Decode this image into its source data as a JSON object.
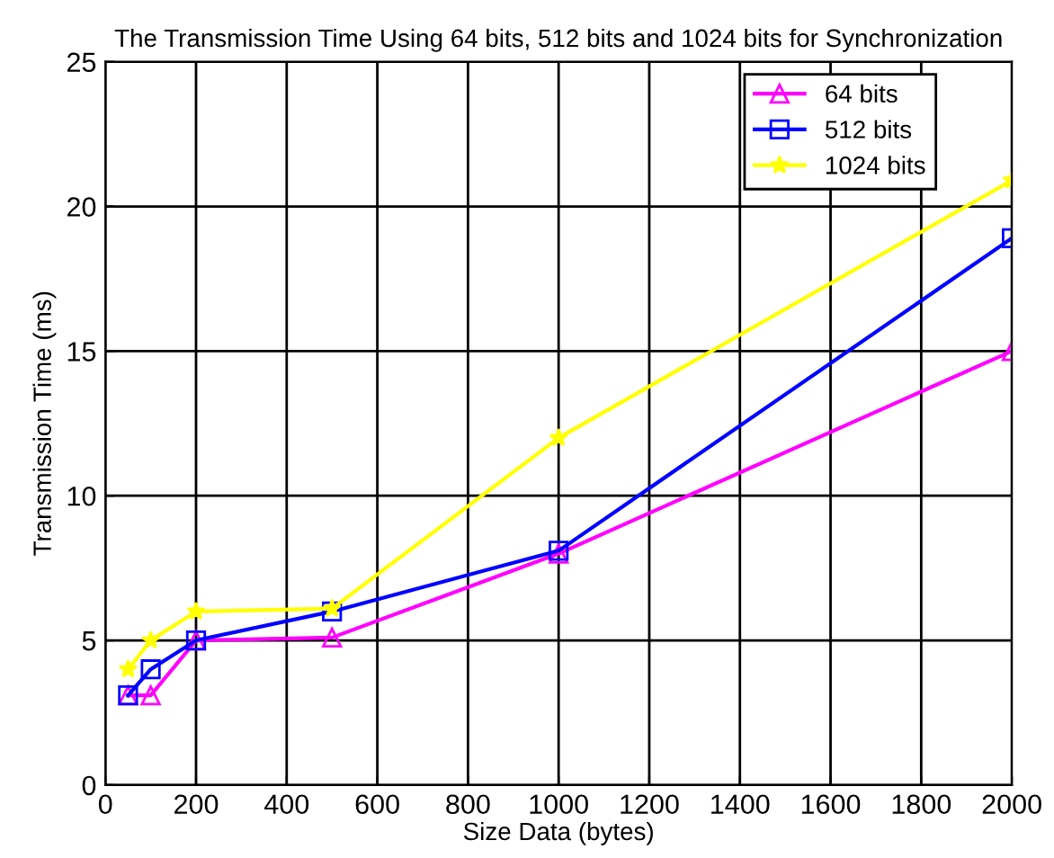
{
  "chart_data": {
    "type": "line",
    "title": "The Transmission Time Using 64 bits, 512 bits and 1024 bits for Synchronization",
    "xlabel": "Size Data (bytes)",
    "ylabel": "Transmission Time (ms)",
    "x": [
      50,
      100,
      200,
      500,
      1000,
      2000
    ],
    "series": [
      {
        "name": "64 bits",
        "color": "#ff00ff",
        "marker": "triangle",
        "values": [
          3.1,
          3.1,
          5.0,
          5.1,
          8.0,
          15.0
        ]
      },
      {
        "name": "512 bits",
        "color": "#0000ff",
        "marker": "square",
        "values": [
          3.1,
          4.0,
          5.0,
          6.0,
          8.1,
          18.9
        ]
      },
      {
        "name": "1024 bits",
        "color": "#ffff00",
        "marker": "star",
        "values": [
          4.0,
          5.0,
          6.0,
          6.1,
          12.0,
          20.9
        ]
      }
    ],
    "xlim": [
      0,
      2000
    ],
    "xticks": [
      0,
      200,
      400,
      600,
      800,
      1000,
      1200,
      1400,
      1600,
      1800,
      2000
    ],
    "ylim": [
      0,
      25
    ],
    "yticks": [
      0,
      5,
      10,
      15,
      20,
      25
    ],
    "grid": true,
    "legend": "top right",
    "line_style": "solid"
  }
}
